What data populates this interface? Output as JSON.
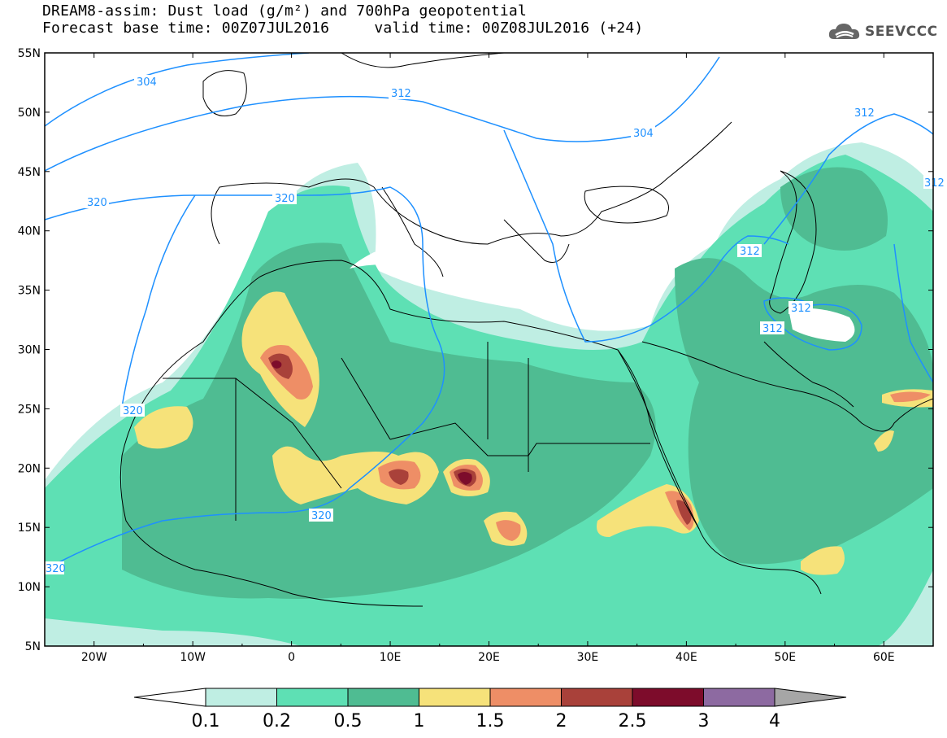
{
  "title": {
    "line1": "DREAM8-assim: Dust load (g/m²) and 700hPa geopotential",
    "line2": "Forecast base time: 00Z07JUL2016     valid time: 00Z08JUL2016 (+24)"
  },
  "logo": {
    "text": "SEEVCCC",
    "icon": "cloud-icon"
  },
  "map": {
    "lon_range": [
      -25,
      65
    ],
    "lat_range": [
      5,
      55
    ],
    "x_ticks": [
      "20W",
      "10W",
      "0",
      "10E",
      "20E",
      "30E",
      "40E",
      "50E",
      "60E"
    ],
    "y_ticks": [
      "5N",
      "10N",
      "15N",
      "20N",
      "25N",
      "30N",
      "35N",
      "40N",
      "45N",
      "50N",
      "55N"
    ],
    "contour_labels": [
      "304",
      "312",
      "320",
      "304",
      "312",
      "320",
      "320",
      "320",
      "312",
      "312",
      "312",
      "320",
      "312"
    ]
  },
  "colorbar": {
    "levels": [
      "0.1",
      "0.2",
      "0.5",
      "1",
      "1.5",
      "2",
      "2.5",
      "3",
      "4"
    ],
    "colors": [
      "#bfeee3",
      "#5ee0b4",
      "#4fbc92",
      "#f6e27a",
      "#ee8e66",
      "#a9413a",
      "#7d0c2b",
      "#8d6aa1",
      "#a6a6a6"
    ]
  }
}
